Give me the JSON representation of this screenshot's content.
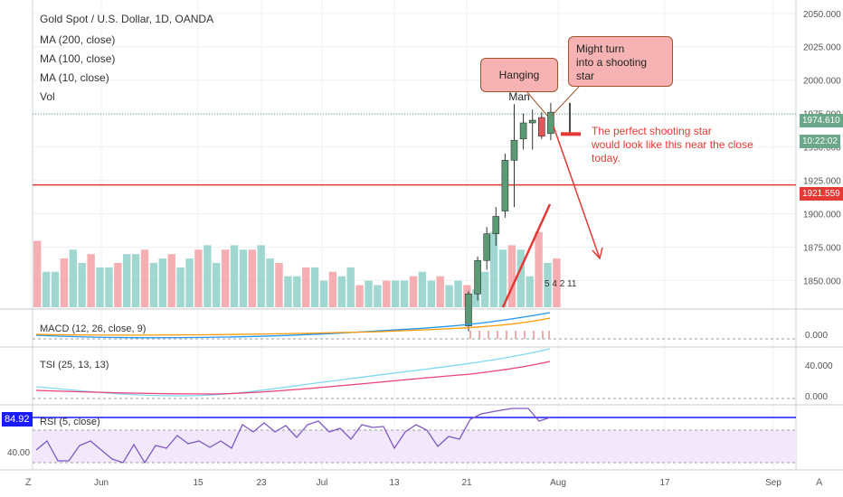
{
  "title": "Gold Spot / U.S. Dollar, 1D, OANDA",
  "legend_ma200": "MA (200, close)",
  "legend_ma100": "MA (100, close)",
  "legend_ma10": "MA (10, close)",
  "legend_vol": "Vol",
  "annotations": {
    "hanging_man": "Hanging Man",
    "shooting_star_line1": "Might turn",
    "shooting_star_line2": "into a shooting star",
    "note_line1": "The perfect shooting star",
    "note_line2": "would look like this near the close",
    "note_line3": "today."
  },
  "price_labels": {
    "last": "1974.610",
    "countdown": "10:22:02",
    "support": "1921.559"
  },
  "indicators": {
    "macd_label": "MACD (12, 26, close, 9)",
    "tsi_label": "TSI (25, 13, 13)",
    "rsi_label": "RSI (5, close)",
    "rsi_value": "84.92",
    "macd_ticks": [
      "0.000"
    ],
    "tsi_ticks": [
      "40.000",
      "0.000"
    ],
    "rsi_ticks": [
      "40.00"
    ]
  },
  "event_badges": [
    "5",
    "4",
    "2",
    "11"
  ],
  "x_ticks": [
    "Jun",
    "15",
    "23",
    "Jul",
    "13",
    "21",
    "Aug",
    "17",
    "Sep"
  ],
  "corner_left": "Z",
  "corner_right": "A",
  "colors": {
    "up": "#6aa889",
    "down": "#e2575a",
    "support_line": "#e53935",
    "rsi_line": "#7e57c2"
  },
  "chart_data": {
    "type": "candlestick",
    "title": "Gold Spot / U.S. Dollar, 1D, OANDA",
    "y_ticks": [
      "2050.000",
      "2025.000",
      "2000.000",
      "1975.000",
      "1950.000",
      "1925.000",
      "1900.000",
      "1875.000",
      "1850.000"
    ],
    "ylim": [
      1830,
      2060
    ],
    "support_level": 1921.559,
    "last_price": 1974.61,
    "candles": [
      {
        "x": "Jul 21",
        "open": 1816,
        "high": 1842,
        "low": 1812,
        "close": 1840
      },
      {
        "x": "Jul 22",
        "open": 1840,
        "high": 1868,
        "low": 1835,
        "close": 1865
      },
      {
        "x": "Jul 23",
        "open": 1865,
        "high": 1890,
        "low": 1858,
        "close": 1885
      },
      {
        "x": "Jul 24",
        "open": 1885,
        "high": 1905,
        "low": 1876,
        "close": 1898
      },
      {
        "x": "Jul 27",
        "open": 1902,
        "high": 1945,
        "low": 1897,
        "close": 1940
      },
      {
        "x": "Jul 28",
        "open": 1940,
        "high": 1982,
        "low": 1905,
        "close": 1955
      },
      {
        "x": "Jul 29",
        "open": 1956,
        "high": 1975,
        "low": 1948,
        "close": 1968
      },
      {
        "x": "Jul 30",
        "open": 1968,
        "high": 1978,
        "low": 1948,
        "close": 1970
      },
      {
        "x": "Jul 31",
        "open": 1972,
        "high": 1976,
        "low": 1956,
        "close": 1958
      },
      {
        "x": "Aug 3",
        "open": 1960,
        "high": 1983,
        "low": 1955,
        "close": 1976
      }
    ],
    "volume": [
      15,
      8,
      8,
      11,
      13,
      10,
      12,
      9,
      9,
      10,
      12,
      12,
      13,
      10,
      11,
      12,
      9,
      11,
      13,
      14,
      10,
      13,
      14,
      13,
      13,
      14,
      11,
      10,
      7,
      7,
      9,
      9,
      6,
      8,
      7,
      9,
      5,
      6,
      5,
      6,
      6,
      6,
      7,
      8,
      6,
      7,
      5,
      6,
      5,
      4,
      8,
      17,
      13,
      14,
      13,
      7,
      17,
      10,
      11
    ]
  }
}
